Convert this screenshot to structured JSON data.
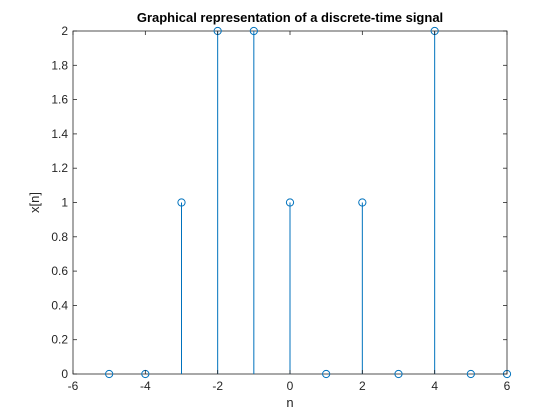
{
  "chart_data": {
    "type": "scatter",
    "style": "stem",
    "title": "Graphical representation of a discrete-time signal",
    "xlabel": "n",
    "ylabel": "x[n]",
    "xlim": [
      -6,
      6
    ],
    "ylim": [
      0,
      2
    ],
    "xticks": [
      -6,
      -4,
      -2,
      0,
      2,
      4,
      6
    ],
    "xtick_labels": [
      "-6",
      "-4",
      "-2",
      "0",
      "2",
      "4",
      "6"
    ],
    "yticks": [
      0,
      0.2,
      0.4,
      0.6,
      0.8,
      1,
      1.2,
      1.4,
      1.6,
      1.8,
      2
    ],
    "ytick_labels": [
      "0",
      "0.2",
      "0.4",
      "0.6",
      "0.8",
      "1",
      "1.2",
      "1.4",
      "1.6",
      "1.8",
      "2"
    ],
    "grid": false,
    "series": [
      {
        "x": [
          -5,
          -4,
          -3,
          -2,
          -1,
          0,
          1,
          2,
          3,
          4,
          5,
          6
        ],
        "y": [
          0,
          0,
          1,
          2,
          2,
          1,
          0,
          1,
          0,
          2,
          0,
          0
        ],
        "color": "#0072BD",
        "marker": "circle-open"
      }
    ]
  }
}
